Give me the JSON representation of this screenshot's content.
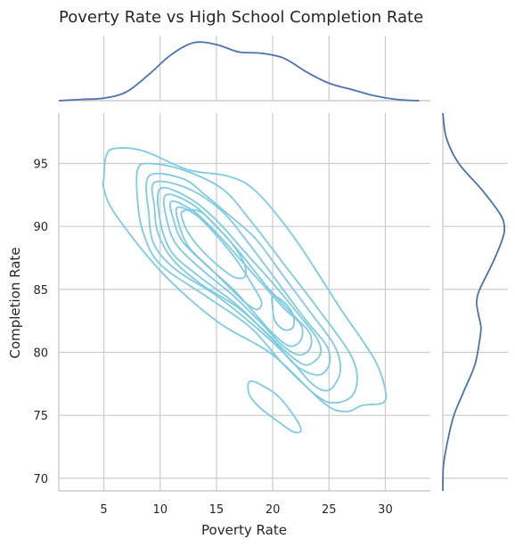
{
  "chart_data": {
    "type": "kde-jointplot",
    "title": "Poverty Rate vs High School Completion Rate",
    "xlabel": "Poverty Rate",
    "ylabel": "Completion Rate",
    "xlim": [
      1.0,
      34.0
    ],
    "ylim": [
      69.0,
      99.0
    ],
    "xticks": [
      5,
      10,
      15,
      20,
      25,
      30
    ],
    "yticks": [
      70,
      75,
      80,
      85,
      90,
      95
    ],
    "grid": true,
    "joint_contour_color": "#7ecbe2",
    "marginal_color": "#4c72b0",
    "contours": [
      {
        "level": 1,
        "points": [
          [
            5.0,
            93.8
          ],
          [
            5.2,
            95.6
          ],
          [
            6.0,
            96.2
          ],
          [
            8.5,
            96.0
          ],
          [
            12.5,
            94.5
          ],
          [
            16.0,
            94.0
          ],
          [
            18.5,
            92.8
          ],
          [
            22.0,
            89.0
          ],
          [
            26.0,
            83.5
          ],
          [
            29.0,
            79.5
          ],
          [
            30.0,
            77.0
          ],
          [
            29.8,
            76.0
          ],
          [
            28.0,
            75.8
          ],
          [
            26.5,
            75.3
          ],
          [
            24.5,
            76.0
          ],
          [
            20.0,
            79.8
          ],
          [
            15.0,
            82.5
          ],
          [
            10.0,
            86.5
          ],
          [
            6.0,
            91.0
          ],
          [
            5.0,
            93.0
          ],
          [
            5.0,
            93.8
          ]
        ]
      },
      {
        "level": 2,
        "points": [
          [
            8.0,
            94.5
          ],
          [
            9.0,
            95.0
          ],
          [
            12.0,
            94.5
          ],
          [
            15.5,
            93.0
          ],
          [
            18.0,
            90.5
          ],
          [
            21.0,
            87.0
          ],
          [
            24.0,
            83.5
          ],
          [
            26.8,
            80.0
          ],
          [
            27.5,
            78.0
          ],
          [
            27.0,
            76.5
          ],
          [
            25.5,
            76.0
          ],
          [
            24.0,
            76.5
          ],
          [
            21.0,
            79.0
          ],
          [
            18.0,
            82.0
          ],
          [
            14.0,
            84.5
          ],
          [
            10.0,
            87.0
          ],
          [
            8.5,
            89.5
          ],
          [
            8.0,
            92.0
          ],
          [
            8.0,
            94.5
          ]
        ]
      },
      {
        "level": 3,
        "points": [
          [
            9.0,
            94.0
          ],
          [
            12.0,
            93.8
          ],
          [
            14.0,
            92.5
          ],
          [
            16.0,
            91.0
          ],
          [
            18.5,
            89.0
          ],
          [
            21.0,
            86.0
          ],
          [
            23.5,
            83.0
          ],
          [
            25.5,
            80.5
          ],
          [
            26.0,
            78.5
          ],
          [
            25.0,
            77.0
          ],
          [
            23.5,
            77.5
          ],
          [
            21.5,
            79.5
          ],
          [
            18.5,
            82.0
          ],
          [
            15.0,
            84.5
          ],
          [
            11.5,
            86.5
          ],
          [
            9.5,
            88.5
          ],
          [
            9.0,
            91.0
          ],
          [
            9.0,
            94.0
          ]
        ]
      },
      {
        "level": 4,
        "points": [
          [
            9.5,
            93.5
          ],
          [
            12.5,
            93.0
          ],
          [
            15.5,
            91.2
          ],
          [
            18.0,
            88.5
          ],
          [
            20.5,
            85.5
          ],
          [
            23.0,
            82.5
          ],
          [
            24.8,
            80.5
          ],
          [
            25.0,
            79.0
          ],
          [
            24.0,
            78.2
          ],
          [
            22.0,
            79.0
          ],
          [
            20.0,
            81.0
          ],
          [
            17.0,
            83.5
          ],
          [
            13.5,
            85.5
          ],
          [
            11.0,
            87.5
          ],
          [
            9.8,
            89.5
          ],
          [
            9.5,
            91.5
          ],
          [
            9.5,
            93.5
          ]
        ]
      },
      {
        "level": 5,
        "points": [
          [
            10.0,
            93.0
          ],
          [
            12.5,
            92.3
          ],
          [
            15.0,
            90.5
          ],
          [
            17.5,
            88.0
          ],
          [
            20.0,
            85.5
          ],
          [
            22.5,
            82.8
          ],
          [
            24.0,
            81.0
          ],
          [
            24.2,
            79.8
          ],
          [
            23.0,
            79.0
          ],
          [
            21.5,
            79.8
          ],
          [
            19.5,
            81.5
          ],
          [
            16.5,
            84.0
          ],
          [
            13.5,
            86.0
          ],
          [
            11.0,
            88.0
          ],
          [
            10.0,
            90.5
          ],
          [
            10.0,
            93.0
          ]
        ]
      },
      {
        "level": 6,
        "points": [
          [
            10.5,
            92.5
          ],
          [
            12.8,
            91.8
          ],
          [
            15.0,
            90.0
          ],
          [
            17.2,
            87.8
          ],
          [
            19.5,
            85.2
          ],
          [
            22.0,
            82.8
          ],
          [
            23.3,
            81.5
          ],
          [
            23.3,
            80.3
          ],
          [
            22.3,
            79.8
          ],
          [
            20.8,
            80.6
          ],
          [
            19.0,
            82.3
          ],
          [
            16.5,
            84.5
          ],
          [
            13.8,
            86.5
          ],
          [
            11.5,
            88.5
          ],
          [
            10.6,
            90.5
          ],
          [
            10.5,
            92.5
          ]
        ]
      },
      {
        "level": 7,
        "points": [
          [
            11.0,
            92.0
          ],
          [
            13.0,
            91.2
          ],
          [
            15.0,
            89.5
          ],
          [
            17.0,
            87.5
          ],
          [
            19.0,
            85.5
          ],
          [
            21.0,
            83.5
          ],
          [
            22.5,
            82.2
          ],
          [
            22.5,
            81.0
          ],
          [
            21.5,
            80.5
          ],
          [
            20.0,
            81.5
          ],
          [
            18.5,
            83.0
          ],
          [
            16.5,
            85.0
          ],
          [
            14.0,
            87.0
          ],
          [
            12.0,
            88.8
          ],
          [
            11.2,
            90.5
          ],
          [
            11.0,
            92.0
          ]
        ]
      },
      {
        "level": 8,
        "points": [
          [
            11.5,
            91.5
          ],
          [
            13.2,
            90.9
          ],
          [
            15.0,
            89.3
          ],
          [
            16.8,
            87.3
          ],
          [
            18.3,
            85.2
          ],
          [
            19.0,
            84.0
          ],
          [
            18.6,
            83.4
          ],
          [
            17.5,
            84.0
          ],
          [
            16.0,
            85.3
          ],
          [
            14.3,
            86.8
          ],
          [
            12.6,
            88.3
          ],
          [
            11.8,
            89.8
          ],
          [
            11.5,
            91.5
          ]
        ]
      },
      {
        "level": 9,
        "points": [
          [
            12.0,
            91.2
          ],
          [
            13.5,
            91.2
          ],
          [
            15.0,
            90.0
          ],
          [
            16.5,
            88.5
          ],
          [
            17.5,
            87.0
          ],
          [
            17.5,
            86.0
          ],
          [
            16.5,
            86.0
          ],
          [
            15.0,
            87.0
          ],
          [
            13.5,
            88.3
          ],
          [
            12.5,
            89.5
          ],
          [
            12.0,
            90.5
          ],
          [
            12.0,
            91.2
          ]
        ]
      },
      {
        "level": 10,
        "points": [
          [
            20.0,
            84.5
          ],
          [
            21.0,
            84.0
          ],
          [
            21.8,
            83.0
          ],
          [
            21.8,
            82.0
          ],
          [
            21.0,
            81.8
          ],
          [
            20.2,
            82.5
          ],
          [
            20.0,
            83.5
          ],
          [
            20.0,
            84.5
          ]
        ]
      },
      {
        "level": 11,
        "points": [
          [
            18.0,
            77.7
          ],
          [
            18.8,
            77.5
          ],
          [
            20.5,
            76.5
          ],
          [
            22.0,
            74.8
          ],
          [
            22.5,
            73.8
          ],
          [
            21.8,
            73.7
          ],
          [
            20.5,
            74.5
          ],
          [
            19.0,
            75.5
          ],
          [
            18.0,
            76.5
          ],
          [
            17.8,
            77.3
          ],
          [
            18.0,
            77.7
          ]
        ]
      }
    ],
    "marginal_x": {
      "x": [
        1,
        3,
        5,
        7,
        9,
        11,
        13,
        15,
        17,
        19,
        21,
        23,
        25,
        27,
        29,
        31,
        33
      ],
      "density": [
        0.0,
        0.02,
        0.04,
        0.14,
        0.42,
        0.74,
        0.93,
        0.9,
        0.78,
        0.76,
        0.68,
        0.46,
        0.28,
        0.18,
        0.08,
        0.02,
        0.0
      ]
    },
    "marginal_y": {
      "y": [
        69,
        71,
        73,
        75,
        77,
        79,
        81,
        82,
        83,
        84,
        85,
        87,
        89,
        90,
        91,
        93,
        95,
        97,
        99
      ],
      "density": [
        0.0,
        0.01,
        0.08,
        0.18,
        0.35,
        0.52,
        0.6,
        0.62,
        0.58,
        0.55,
        0.6,
        0.8,
        0.97,
        1.0,
        0.93,
        0.62,
        0.26,
        0.06,
        0.0
      ]
    }
  }
}
